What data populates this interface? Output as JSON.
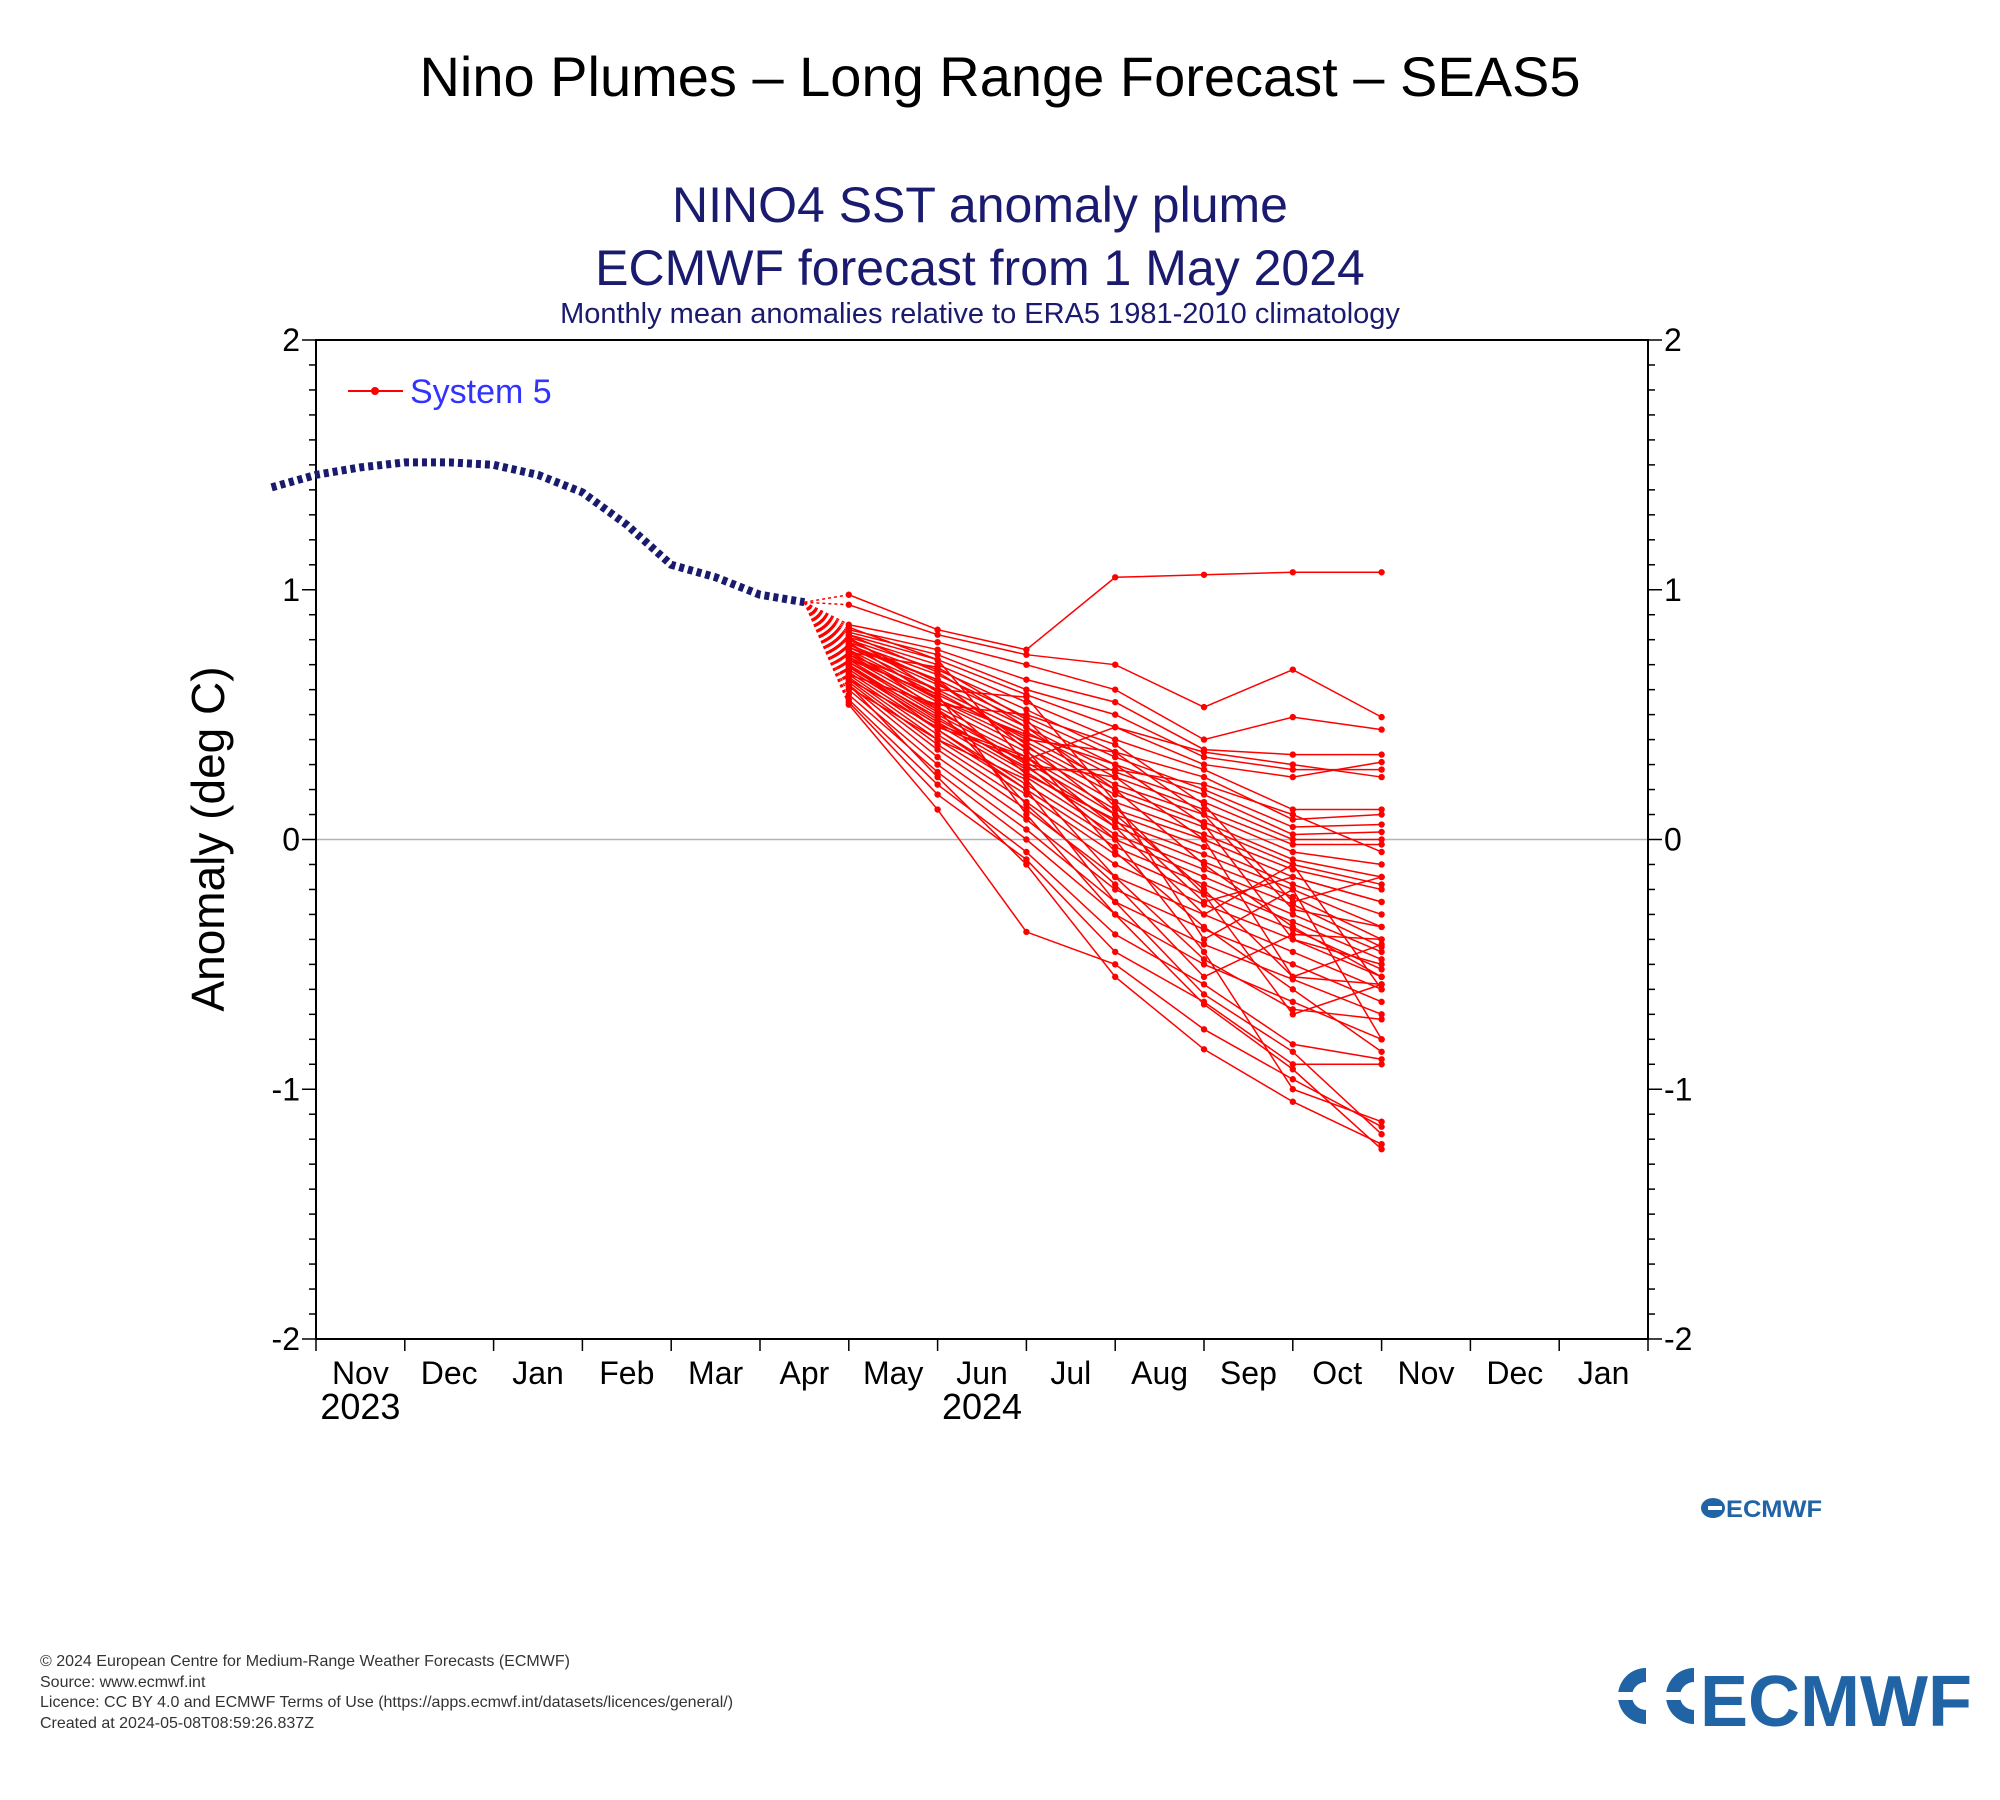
{
  "page_title": "Nino Plumes – Long Range Forecast – SEAS5",
  "colors": {
    "title": "#1a1a6e",
    "forecast": "#ff0000",
    "observed": "#1a1a6e",
    "legend_text": "#3333ff",
    "logo": "#2164a6",
    "zero_line": "#b3b3b3"
  },
  "chart_data": {
    "type": "line",
    "title": "NINO4 SST anomaly plume",
    "title2": "ECMWF forecast from 1 May 2024",
    "subtitle": "Monthly mean anomalies relative to ERA5 1981-2010 climatology",
    "ylabel": "Anomaly (deg C)",
    "ylim": [
      -2,
      2
    ],
    "yticks": [
      "2",
      "1",
      "0",
      "-1",
      "-2"
    ],
    "months": [
      "Nov",
      "Dec",
      "Jan",
      "Feb",
      "Mar",
      "Apr",
      "May",
      "Jun",
      "Jul",
      "Aug",
      "Sep",
      "Oct",
      "Nov",
      "Dec",
      "Jan"
    ],
    "year_labels": [
      {
        "label": "2023",
        "month_index": 0.5
      },
      {
        "label": "2024",
        "month_index": 7.5
      }
    ],
    "legend": [
      {
        "name": "System 5",
        "placement": "top-left"
      }
    ],
    "grid": false,
    "observed": {
      "months": [
        -0.5,
        0.0,
        0.5,
        1.0,
        1.5,
        2.0,
        2.5,
        3.0,
        3.5,
        4.0,
        4.5,
        5.0,
        5.5
      ],
      "values": [
        1.41,
        1.46,
        1.49,
        1.51,
        1.51,
        1.5,
        1.46,
        1.39,
        1.26,
        1.1,
        1.05,
        0.98,
        0.95
      ]
    },
    "forecast_start": {
      "month": 5.5,
      "value": 0.95
    },
    "forecast_months": [
      6,
      7,
      8,
      9,
      10,
      11,
      12
    ],
    "members": [
      [
        0.98,
        0.84,
        0.76,
        1.05,
        1.06,
        1.07,
        1.07
      ],
      [
        0.94,
        0.82,
        0.74,
        0.7,
        0.53,
        0.68,
        0.49
      ],
      [
        0.86,
        0.79,
        0.7,
        0.6,
        0.4,
        0.49,
        0.44
      ],
      [
        0.84,
        0.76,
        0.64,
        0.55,
        0.36,
        0.34,
        0.34
      ],
      [
        0.83,
        0.74,
        0.6,
        0.5,
        0.33,
        0.28,
        0.28
      ],
      [
        0.82,
        0.72,
        0.58,
        0.45,
        0.3,
        0.25,
        0.31
      ],
      [
        0.81,
        0.7,
        0.55,
        0.4,
        0.28,
        0.12,
        0.12
      ],
      [
        0.8,
        0.68,
        0.52,
        0.35,
        0.25,
        0.08,
        0.1
      ],
      [
        0.79,
        0.66,
        0.49,
        0.33,
        0.2,
        0.05,
        0.06
      ],
      [
        0.78,
        0.64,
        0.47,
        0.3,
        0.18,
        0.02,
        0.03
      ],
      [
        0.78,
        0.62,
        0.45,
        0.27,
        0.15,
        0.0,
        0.0
      ],
      [
        0.77,
        0.6,
        0.43,
        0.25,
        0.12,
        -0.02,
        -0.02
      ],
      [
        0.76,
        0.58,
        0.41,
        0.22,
        0.1,
        -0.05,
        -0.1
      ],
      [
        0.75,
        0.56,
        0.39,
        0.2,
        0.07,
        -0.08,
        -0.15
      ],
      [
        0.74,
        0.55,
        0.37,
        0.18,
        0.05,
        -0.1,
        -0.18
      ],
      [
        0.73,
        0.53,
        0.35,
        0.15,
        0.02,
        -0.12,
        -0.2
      ],
      [
        0.72,
        0.51,
        0.33,
        0.12,
        0.0,
        -0.15,
        -0.25
      ],
      [
        0.71,
        0.5,
        0.31,
        0.1,
        -0.03,
        -0.18,
        -0.3
      ],
      [
        0.7,
        0.48,
        0.29,
        0.07,
        -0.06,
        -0.2,
        -0.35
      ],
      [
        0.69,
        0.47,
        0.27,
        0.05,
        -0.09,
        -0.23,
        -0.4
      ],
      [
        0.68,
        0.46,
        0.25,
        0.02,
        -0.12,
        -0.26,
        -0.43
      ],
      [
        0.67,
        0.44,
        0.22,
        0.0,
        -0.15,
        -0.3,
        -0.45
      ],
      [
        0.66,
        0.42,
        0.2,
        -0.03,
        -0.18,
        -0.33,
        -0.48
      ],
      [
        0.65,
        0.4,
        0.18,
        -0.06,
        -0.22,
        -0.36,
        -0.52
      ],
      [
        0.64,
        0.38,
        0.15,
        -0.1,
        -0.26,
        -0.4,
        -0.55
      ],
      [
        0.63,
        0.36,
        0.12,
        -0.15,
        -0.3,
        -0.45,
        -0.6
      ],
      [
        0.62,
        0.33,
        0.08,
        -0.2,
        -0.36,
        -0.5,
        -0.65
      ],
      [
        0.6,
        0.3,
        0.04,
        -0.25,
        -0.42,
        -0.56,
        -0.7
      ],
      [
        0.58,
        0.27,
        0.0,
        -0.3,
        -0.5,
        -0.65,
        -0.8
      ],
      [
        0.56,
        0.22,
        -0.05,
        -0.38,
        -0.58,
        -0.82,
        -0.88
      ],
      [
        0.55,
        0.18,
        -0.08,
        -0.45,
        -0.65,
        -0.9,
        -0.9
      ],
      [
        0.54,
        0.12,
        -0.37,
        -0.5,
        -0.76,
        -0.96,
        -1.15
      ],
      [
        0.62,
        0.25,
        -0.1,
        -0.55,
        -0.84,
        -1.05,
        -1.22
      ],
      [
        0.7,
        0.44,
        0.2,
        -0.25,
        -0.62,
        -0.85,
        -1.18
      ],
      [
        0.76,
        0.52,
        0.3,
        0.0,
        -0.45,
        -1.0,
        -1.13
      ],
      [
        0.72,
        0.58,
        0.1,
        -0.3,
        -0.66,
        -0.92,
        -1.24
      ],
      [
        0.8,
        0.63,
        0.38,
        0.1,
        -0.2,
        -0.55,
        -0.42
      ],
      [
        0.82,
        0.67,
        0.45,
        0.2,
        -0.1,
        -0.35,
        -0.55
      ],
      [
        0.74,
        0.6,
        0.57,
        0.15,
        -0.4,
        -0.2,
        -0.8
      ],
      [
        0.68,
        0.46,
        0.33,
        0.05,
        -0.3,
        -0.1,
        -0.6
      ],
      [
        0.79,
        0.56,
        0.42,
        0.3,
        0.06,
        -0.4,
        -0.5
      ],
      [
        0.66,
        0.54,
        0.5,
        0.38,
        0.14,
        -0.25,
        -0.15
      ],
      [
        0.85,
        0.72,
        0.3,
        0.25,
        0.0,
        -0.55,
        -0.58
      ],
      [
        0.61,
        0.4,
        0.24,
        -0.15,
        -0.48,
        -0.68,
        -0.72
      ],
      [
        0.77,
        0.64,
        0.36,
        -0.05,
        -0.35,
        -0.6,
        -0.85
      ],
      [
        0.73,
        0.57,
        0.26,
        0.08,
        -0.25,
        -0.15,
        -0.25
      ],
      [
        0.69,
        0.49,
        0.28,
        0.28,
        0.22,
        0.1,
        -0.05
      ],
      [
        0.81,
        0.59,
        0.4,
        0.35,
        0.1,
        -0.28,
        -0.35
      ],
      [
        0.64,
        0.45,
        0.32,
        0.45,
        0.35,
        0.3,
        0.25
      ],
      [
        0.75,
        0.69,
        0.48,
        0.13,
        -0.22,
        -0.7,
        -0.58
      ],
      [
        0.71,
        0.52,
        0.14,
        -0.18,
        -0.55,
        -0.38,
        -0.4
      ]
    ]
  },
  "logo": {
    "small": "ECMWF",
    "big": "ECMWF"
  },
  "footer": {
    "copyright": "© 2024 European Centre for Medium-Range Weather Forecasts (ECMWF)",
    "source": "Source: www.ecmwf.int",
    "licence": "Licence: CC BY 4.0 and ECMWF Terms of Use (https://apps.ecmwf.int/datasets/licences/general/)",
    "created": "Created at 2024-05-08T08:59:26.837Z"
  }
}
